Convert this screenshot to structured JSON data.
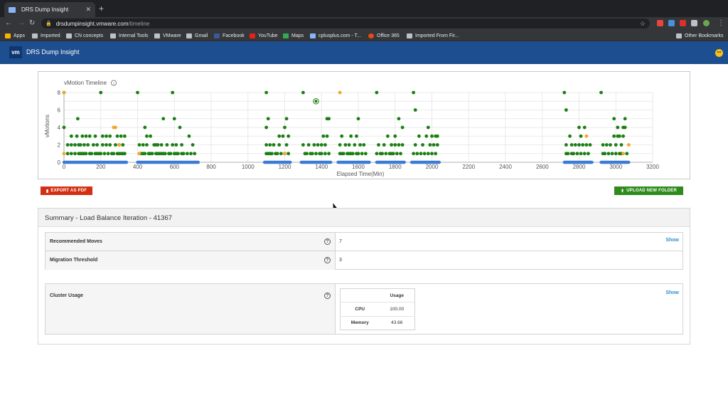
{
  "browser": {
    "tab_title": "DRS Dump Insight",
    "tab_close": "✕",
    "new_tab": "+",
    "url_host": "drsdumpinsight.vmware.com",
    "url_path": "/timeline",
    "bookmarks": [
      "Apps",
      "Imported",
      "CN concepts",
      "Internal Tools",
      "VMware",
      "Gmail",
      "Facebook",
      "YouTube",
      "Maps",
      "cplusplus.com - T...",
      "Office 365",
      "Imported From Fir...",
      "Other Bookmarks"
    ]
  },
  "app": {
    "logo": "vm",
    "title": "DRS Dump Insight"
  },
  "buttons": {
    "export": "EXPORT AS PDF",
    "upload": "UPLOAD NEW FOLDER"
  },
  "summary": {
    "title": "Summary - Load Balance Iteration - 41367",
    "rows": [
      {
        "label": "Recommended Moves",
        "value": "7",
        "action": "Show"
      },
      {
        "label": "Migration Threshold",
        "value": "3"
      }
    ],
    "cluster": {
      "label": "Cluster Usage",
      "action": "Show",
      "header": "Usage",
      "items": [
        {
          "name": "CPU",
          "value": "100.00"
        },
        {
          "name": "Memory",
          "value": "43.66"
        }
      ]
    },
    "help_glyph": "?"
  },
  "colors": {
    "green": "#1a7f12",
    "orange": "#f5a623",
    "blue": "#3a7bd5",
    "header": "#1d4e8f"
  },
  "chart_data": {
    "type": "scatter",
    "title": "vMotion Timeline",
    "xlabel": "Elapsed Time(Min)",
    "ylabel": "vMotions",
    "xlim": [
      0,
      3200
    ],
    "ylim": [
      0,
      8
    ],
    "xticks": [
      0,
      200,
      400,
      600,
      800,
      1000,
      1200,
      1400,
      1600,
      1800,
      2000,
      2200,
      2400,
      2600,
      2800,
      3000,
      3200
    ],
    "yticks": [
      0,
      2,
      4,
      6,
      8
    ],
    "grid": true,
    "zero_baseline_ranges": [
      [
        0,
        340
      ],
      [
        400,
        730
      ],
      [
        1090,
        1230
      ],
      [
        1290,
        1450
      ],
      [
        1490,
        1660
      ],
      [
        1700,
        1850
      ],
      [
        1890,
        2040
      ],
      [
        2720,
        2870
      ],
      [
        2920,
        3070
      ]
    ],
    "series": [
      {
        "color": "green",
        "points": [
          [
            0,
            4
          ],
          [
            0,
            8
          ],
          [
            20,
            1
          ],
          [
            20,
            2
          ],
          [
            40,
            1
          ],
          [
            40,
            2
          ],
          [
            40,
            3
          ],
          [
            60,
            1
          ],
          [
            60,
            2
          ],
          [
            70,
            3
          ],
          [
            75,
            5
          ],
          [
            80,
            1
          ],
          [
            80,
            2
          ],
          [
            90,
            1
          ],
          [
            90,
            2
          ],
          [
            100,
            1
          ],
          [
            100,
            3
          ],
          [
            110,
            1
          ],
          [
            110,
            2
          ],
          [
            120,
            1
          ],
          [
            120,
            3
          ],
          [
            130,
            2
          ],
          [
            140,
            1
          ],
          [
            140,
            3
          ],
          [
            150,
            1
          ],
          [
            160,
            2
          ],
          [
            170,
            1
          ],
          [
            170,
            3
          ],
          [
            180,
            1
          ],
          [
            180,
            2
          ],
          [
            190,
            1
          ],
          [
            200,
            8
          ],
          [
            200,
            1
          ],
          [
            210,
            2
          ],
          [
            210,
            3
          ],
          [
            220,
            1
          ],
          [
            230,
            2
          ],
          [
            230,
            3
          ],
          [
            240,
            1
          ],
          [
            250,
            2
          ],
          [
            250,
            3
          ],
          [
            260,
            1
          ],
          [
            270,
            1
          ],
          [
            280,
            2
          ],
          [
            290,
            1
          ],
          [
            290,
            3
          ],
          [
            300,
            1
          ],
          [
            300,
            2
          ],
          [
            310,
            1
          ],
          [
            310,
            3
          ],
          [
            320,
            1
          ],
          [
            320,
            2
          ],
          [
            330,
            1
          ],
          [
            330,
            3
          ],
          [
            400,
            8
          ],
          [
            410,
            1
          ],
          [
            410,
            2
          ],
          [
            420,
            1
          ],
          [
            430,
            1
          ],
          [
            430,
            2
          ],
          [
            440,
            4
          ],
          [
            440,
            1
          ],
          [
            450,
            2
          ],
          [
            450,
            3
          ],
          [
            460,
            1
          ],
          [
            470,
            3
          ],
          [
            470,
            1
          ],
          [
            480,
            1
          ],
          [
            490,
            2
          ],
          [
            500,
            1
          ],
          [
            500,
            2
          ],
          [
            510,
            1
          ],
          [
            510,
            2
          ],
          [
            520,
            1
          ],
          [
            530,
            1
          ],
          [
            530,
            2
          ],
          [
            540,
            5
          ],
          [
            540,
            1
          ],
          [
            550,
            1
          ],
          [
            560,
            2
          ],
          [
            570,
            1
          ],
          [
            580,
            1
          ],
          [
            590,
            8
          ],
          [
            590,
            2
          ],
          [
            600,
            5
          ],
          [
            600,
            1
          ],
          [
            610,
            1
          ],
          [
            610,
            2
          ],
          [
            620,
            1
          ],
          [
            630,
            4
          ],
          [
            640,
            1
          ],
          [
            640,
            2
          ],
          [
            650,
            1
          ],
          [
            670,
            1
          ],
          [
            680,
            3
          ],
          [
            690,
            1
          ],
          [
            700,
            2
          ],
          [
            710,
            1
          ],
          [
            1100,
            8
          ],
          [
            1100,
            1
          ],
          [
            1100,
            2
          ],
          [
            1100,
            4
          ],
          [
            1110,
            5
          ],
          [
            1110,
            1
          ],
          [
            1120,
            1
          ],
          [
            1120,
            2
          ],
          [
            1130,
            1
          ],
          [
            1140,
            2
          ],
          [
            1150,
            1
          ],
          [
            1160,
            1
          ],
          [
            1170,
            2
          ],
          [
            1170,
            3
          ],
          [
            1180,
            1
          ],
          [
            1190,
            3
          ],
          [
            1200,
            4
          ],
          [
            1200,
            1
          ],
          [
            1210,
            5
          ],
          [
            1210,
            2
          ],
          [
            1220,
            1
          ],
          [
            1220,
            3
          ],
          [
            1300,
            8
          ],
          [
            1300,
            2
          ],
          [
            1310,
            1
          ],
          [
            1320,
            1
          ],
          [
            1330,
            2
          ],
          [
            1340,
            1
          ],
          [
            1350,
            1
          ],
          [
            1360,
            2
          ],
          [
            1370,
            1
          ],
          [
            1380,
            2
          ],
          [
            1390,
            1
          ],
          [
            1400,
            2
          ],
          [
            1400,
            1
          ],
          [
            1410,
            3
          ],
          [
            1420,
            1
          ],
          [
            1420,
            2
          ],
          [
            1430,
            5
          ],
          [
            1430,
            3
          ],
          [
            1440,
            1
          ],
          [
            1440,
            5
          ],
          [
            1500,
            1
          ],
          [
            1500,
            2
          ],
          [
            1510,
            1
          ],
          [
            1510,
            3
          ],
          [
            1520,
            1
          ],
          [
            1530,
            2
          ],
          [
            1540,
            1
          ],
          [
            1550,
            1
          ],
          [
            1550,
            2
          ],
          [
            1560,
            1
          ],
          [
            1560,
            3
          ],
          [
            1570,
            1
          ],
          [
            1580,
            2
          ],
          [
            1590,
            1
          ],
          [
            1590,
            3
          ],
          [
            1600,
            5
          ],
          [
            1600,
            1
          ],
          [
            1610,
            2
          ],
          [
            1620,
            1
          ],
          [
            1630,
            2
          ],
          [
            1640,
            1
          ],
          [
            1700,
            8
          ],
          [
            1700,
            1
          ],
          [
            1710,
            2
          ],
          [
            1720,
            1
          ],
          [
            1730,
            1
          ],
          [
            1740,
            2
          ],
          [
            1750,
            1
          ],
          [
            1760,
            3
          ],
          [
            1770,
            1
          ],
          [
            1780,
            2
          ],
          [
            1780,
            1
          ],
          [
            1790,
            1
          ],
          [
            1800,
            2
          ],
          [
            1800,
            3
          ],
          [
            1810,
            1
          ],
          [
            1820,
            5
          ],
          [
            1820,
            2
          ],
          [
            1830,
            1
          ],
          [
            1840,
            2
          ],
          [
            1840,
            4
          ],
          [
            1900,
            8
          ],
          [
            1900,
            1
          ],
          [
            1910,
            2
          ],
          [
            1910,
            6
          ],
          [
            1920,
            1
          ],
          [
            1930,
            3
          ],
          [
            1940,
            1
          ],
          [
            1950,
            2
          ],
          [
            1960,
            1
          ],
          [
            1970,
            3
          ],
          [
            1980,
            1
          ],
          [
            1980,
            4
          ],
          [
            1990,
            2
          ],
          [
            2000,
            1
          ],
          [
            2000,
            3
          ],
          [
            2010,
            2
          ],
          [
            2020,
            1
          ],
          [
            2020,
            3
          ],
          [
            2030,
            2
          ],
          [
            2030,
            3
          ],
          [
            2720,
            8
          ],
          [
            2730,
            6
          ],
          [
            2730,
            1
          ],
          [
            2730,
            2
          ],
          [
            2740,
            1
          ],
          [
            2750,
            3
          ],
          [
            2760,
            1
          ],
          [
            2760,
            2
          ],
          [
            2770,
            1
          ],
          [
            2780,
            2
          ],
          [
            2790,
            1
          ],
          [
            2800,
            2
          ],
          [
            2800,
            4
          ],
          [
            2810,
            3
          ],
          [
            2810,
            1
          ],
          [
            2820,
            2
          ],
          [
            2830,
            1
          ],
          [
            2830,
            4
          ],
          [
            2840,
            2
          ],
          [
            2850,
            1
          ],
          [
            2860,
            2
          ],
          [
            2920,
            8
          ],
          [
            2930,
            1
          ],
          [
            2930,
            2
          ],
          [
            2940,
            1
          ],
          [
            2950,
            2
          ],
          [
            2960,
            1
          ],
          [
            2970,
            2
          ],
          [
            2980,
            1
          ],
          [
            2990,
            3
          ],
          [
            2990,
            5
          ],
          [
            3000,
            1
          ],
          [
            3000,
            2
          ],
          [
            3010,
            4
          ],
          [
            3010,
            3
          ],
          [
            3020,
            1
          ],
          [
            3020,
            3
          ],
          [
            3030,
            2
          ],
          [
            3030,
            1
          ],
          [
            3040,
            4
          ],
          [
            3040,
            3
          ],
          [
            3050,
            5
          ],
          [
            3050,
            4
          ],
          [
            3060,
            1
          ]
        ]
      },
      {
        "color": "orange",
        "points": [
          [
            0,
            8
          ],
          [
            0,
            1
          ],
          [
            280,
            4
          ],
          [
            270,
            4
          ],
          [
            300,
            2
          ],
          [
            410,
            1
          ],
          [
            1200,
            1
          ],
          [
            1500,
            8
          ],
          [
            2840,
            3
          ],
          [
            3070,
            2
          ],
          [
            3040,
            1
          ]
        ]
      }
    ],
    "highlighted_point": [
      1370,
      7
    ]
  }
}
